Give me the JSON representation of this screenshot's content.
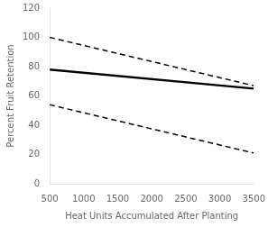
{
  "chart_data": {
    "type": "line",
    "x": [
      500,
      3500
    ],
    "series": [
      {
        "values": [
          78,
          65
        ],
        "color": "black",
        "line_style": "solid"
      },
      {
        "values": [
          100,
          67
        ],
        "color": "black",
        "line_style": "dashed"
      },
      {
        "values": [
          54,
          21
        ],
        "color": "black",
        "line_style": "dashed"
      }
    ],
    "xlabel": "Heat Units Accumulated After Planting",
    "ylabel": "Percent Fruit Retention",
    "xlim": [
      500,
      3500
    ],
    "ylim": [
      0,
      120
    ],
    "xticks": [
      500,
      1000,
      1500,
      2000,
      2500,
      3000,
      3500
    ],
    "yticks": [
      0,
      20,
      40,
      60,
      80,
      100,
      120
    ],
    "grid": false
  }
}
